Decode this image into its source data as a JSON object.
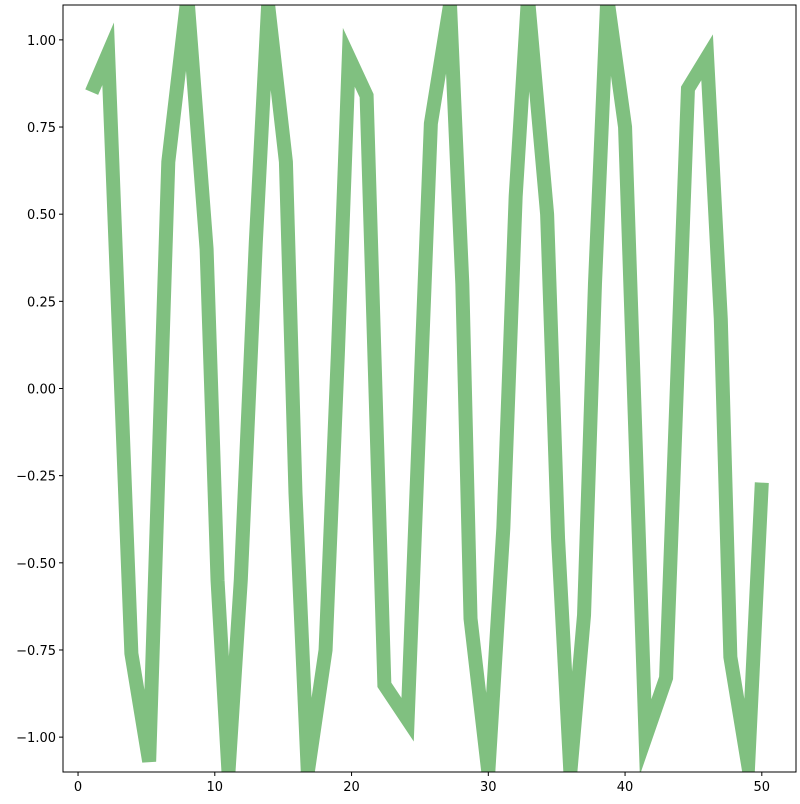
{
  "chart_data": {
    "type": "line",
    "x": [
      1,
      2.2,
      3.9,
      5.2,
      6.6,
      8.0,
      9.4,
      10.2,
      11.0,
      11.9,
      13.0,
      13.9,
      15.2,
      15.9,
      16.8,
      18.1,
      19.0,
      19.8,
      21.1,
      22.4,
      24.1,
      25.8,
      27.2,
      28.1,
      28.7,
      30.0,
      31.1,
      32.0,
      32.9,
      34.3,
      35.1,
      36.0,
      37.0,
      37.8,
      38.7,
      40.0,
      41.5,
      43.0,
      44.6,
      46.0,
      47.0,
      47.7,
      49.0,
      50
    ],
    "series": [
      {
        "color": "#80c080",
        "values": [
          0.85,
          0.96,
          -0.76,
          -1.07,
          0.65,
          1.12,
          0.4,
          -0.55,
          -1.1,
          -0.55,
          0.42,
          1.1,
          0.65,
          -0.3,
          -1.1,
          -0.75,
          0.1,
          0.95,
          0.84,
          -0.85,
          -0.95,
          0.76,
          1.1,
          0.3,
          -0.66,
          -1.1,
          -0.4,
          0.55,
          1.12,
          0.5,
          -0.43,
          -1.1,
          -0.65,
          0.3,
          1.12,
          0.75,
          -1.0,
          -0.83,
          0.86,
          0.95,
          0.2,
          -0.77,
          -1.08,
          -0.27
        ]
      }
    ],
    "xlim": [
      -1.1,
      52.5
    ],
    "ylim": [
      -1.1,
      1.1
    ],
    "xticks": [
      0,
      10,
      20,
      30,
      40,
      50
    ],
    "yticks": [
      {
        "value": 1,
        "label": "1.00"
      },
      {
        "value": 0.75,
        "label": "0.75"
      },
      {
        "value": 0.5,
        "label": "0.50"
      },
      {
        "value": 0.25,
        "label": "0.25"
      },
      {
        "value": 0,
        "label": "0.00"
      },
      {
        "value": -0.25,
        "label": "−0.25"
      },
      {
        "value": -0.5,
        "label": "−0.50"
      },
      {
        "value": -0.75,
        "label": "−0.75"
      },
      {
        "value": -1,
        "label": "−1.00"
      }
    ]
  }
}
